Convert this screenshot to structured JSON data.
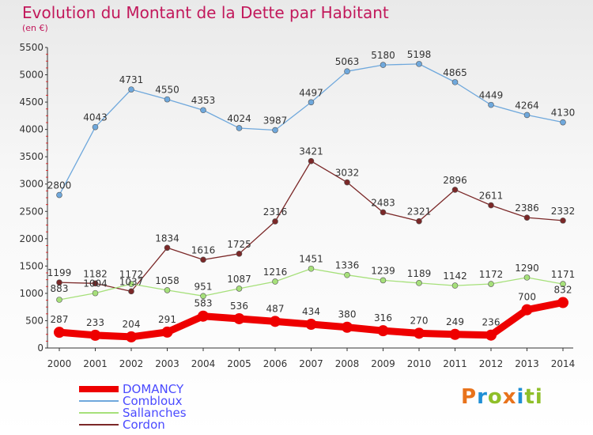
{
  "header": {
    "title": "Evolution du Montant de la Dette par Habitant",
    "subtitle": "(en €)"
  },
  "brand": {
    "letters": [
      "P",
      "r",
      "o",
      "x",
      "i",
      "t",
      "i"
    ],
    "colors": [
      "#e8731c",
      "#1f8fd6",
      "#8fbf2a",
      "#e8731c",
      "#1f8fd6",
      "#8fbf2a",
      "#8fbf2a"
    ]
  },
  "chart_data": {
    "type": "line",
    "title": "Evolution du Montant de la Dette par Habitant",
    "subtitle": "(en €)",
    "x": [
      "2000",
      "2001",
      "2002",
      "2003",
      "2004",
      "2005",
      "2006",
      "2007",
      "2008",
      "2009",
      "2010",
      "2011",
      "2012",
      "2013",
      "2014"
    ],
    "ylim": [
      0,
      5500
    ],
    "yticks": [
      "0",
      "500",
      "1000",
      "1500",
      "2000",
      "2500",
      "3000",
      "3500",
      "4000",
      "4500",
      "5000",
      "5500"
    ],
    "grid": false,
    "legend": "bottom-left",
    "series": [
      {
        "name": "DOMANCY",
        "color": "#ee0000",
        "width": 9,
        "values": [
          287,
          233,
          204,
          291,
          583,
          536,
          487,
          434,
          380,
          316,
          270,
          249,
          236,
          700,
          832
        ]
      },
      {
        "name": "Combloux",
        "color": "#6fa8dc",
        "width": 1.3,
        "values": [
          2800,
          4043,
          4731,
          4550,
          4353,
          4024,
          3987,
          4497,
          5063,
          5180,
          5198,
          4865,
          4449,
          4264,
          4130
        ]
      },
      {
        "name": "Sallanches",
        "color": "#a6e07a",
        "width": 1.3,
        "values": [
          883,
          1004,
          1172,
          1058,
          951,
          1087,
          1216,
          1451,
          1336,
          1239,
          1189,
          1142,
          1172,
          1290,
          1171
        ]
      },
      {
        "name": "Cordon",
        "color": "#7b2828",
        "width": 1.3,
        "values": [
          1199,
          1182,
          1037,
          1834,
          1616,
          1725,
          2316,
          3421,
          3032,
          2483,
          2321,
          2896,
          2611,
          2386,
          2332
        ]
      }
    ]
  }
}
